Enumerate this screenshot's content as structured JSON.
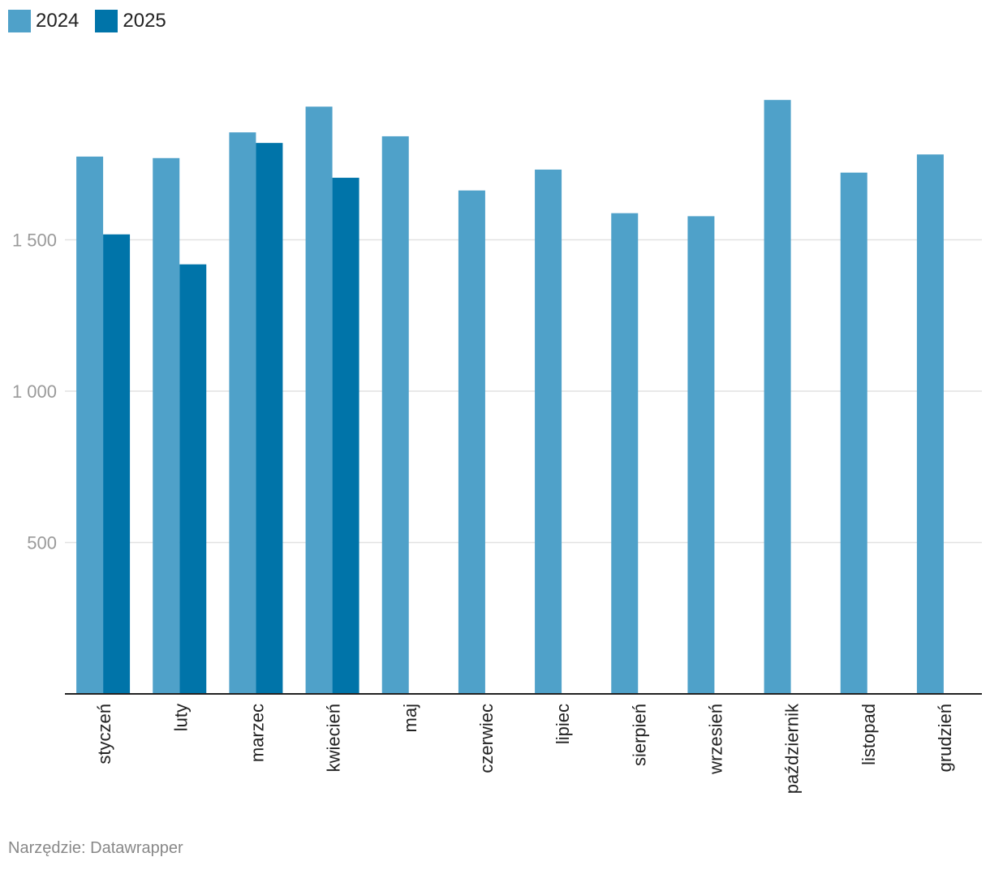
{
  "legend": [
    {
      "label": "2024",
      "color": "#4fa1c9"
    },
    {
      "label": "2025",
      "color": "#0074a9"
    }
  ],
  "footer": {
    "source": "Narzędzie: Datawrapper"
  },
  "chart_data": {
    "type": "bar",
    "categories": [
      "styczeń",
      "luty",
      "marzec",
      "kwiecień",
      "maj",
      "czerwiec",
      "lipiec",
      "sierpień",
      "wrzesień",
      "październik",
      "listopad",
      "grudzień"
    ],
    "series": [
      {
        "name": "2024",
        "color": "#4fa1c9",
        "values": [
          1775,
          1770,
          1855,
          1940,
          1842,
          1663,
          1732,
          1588,
          1578,
          1962,
          1722,
          1782
        ]
      },
      {
        "name": "2025",
        "color": "#0074a9",
        "values": [
          1518,
          1419,
          1820,
          1705,
          null,
          null,
          null,
          null,
          null,
          null,
          null,
          null
        ]
      }
    ],
    "yticks": [
      500,
      1000,
      1500
    ],
    "ytick_labels": [
      "500",
      "1 000",
      "1 500"
    ],
    "ylim": [
      0,
      2100
    ],
    "grid": true,
    "legend_position": "top-left"
  }
}
